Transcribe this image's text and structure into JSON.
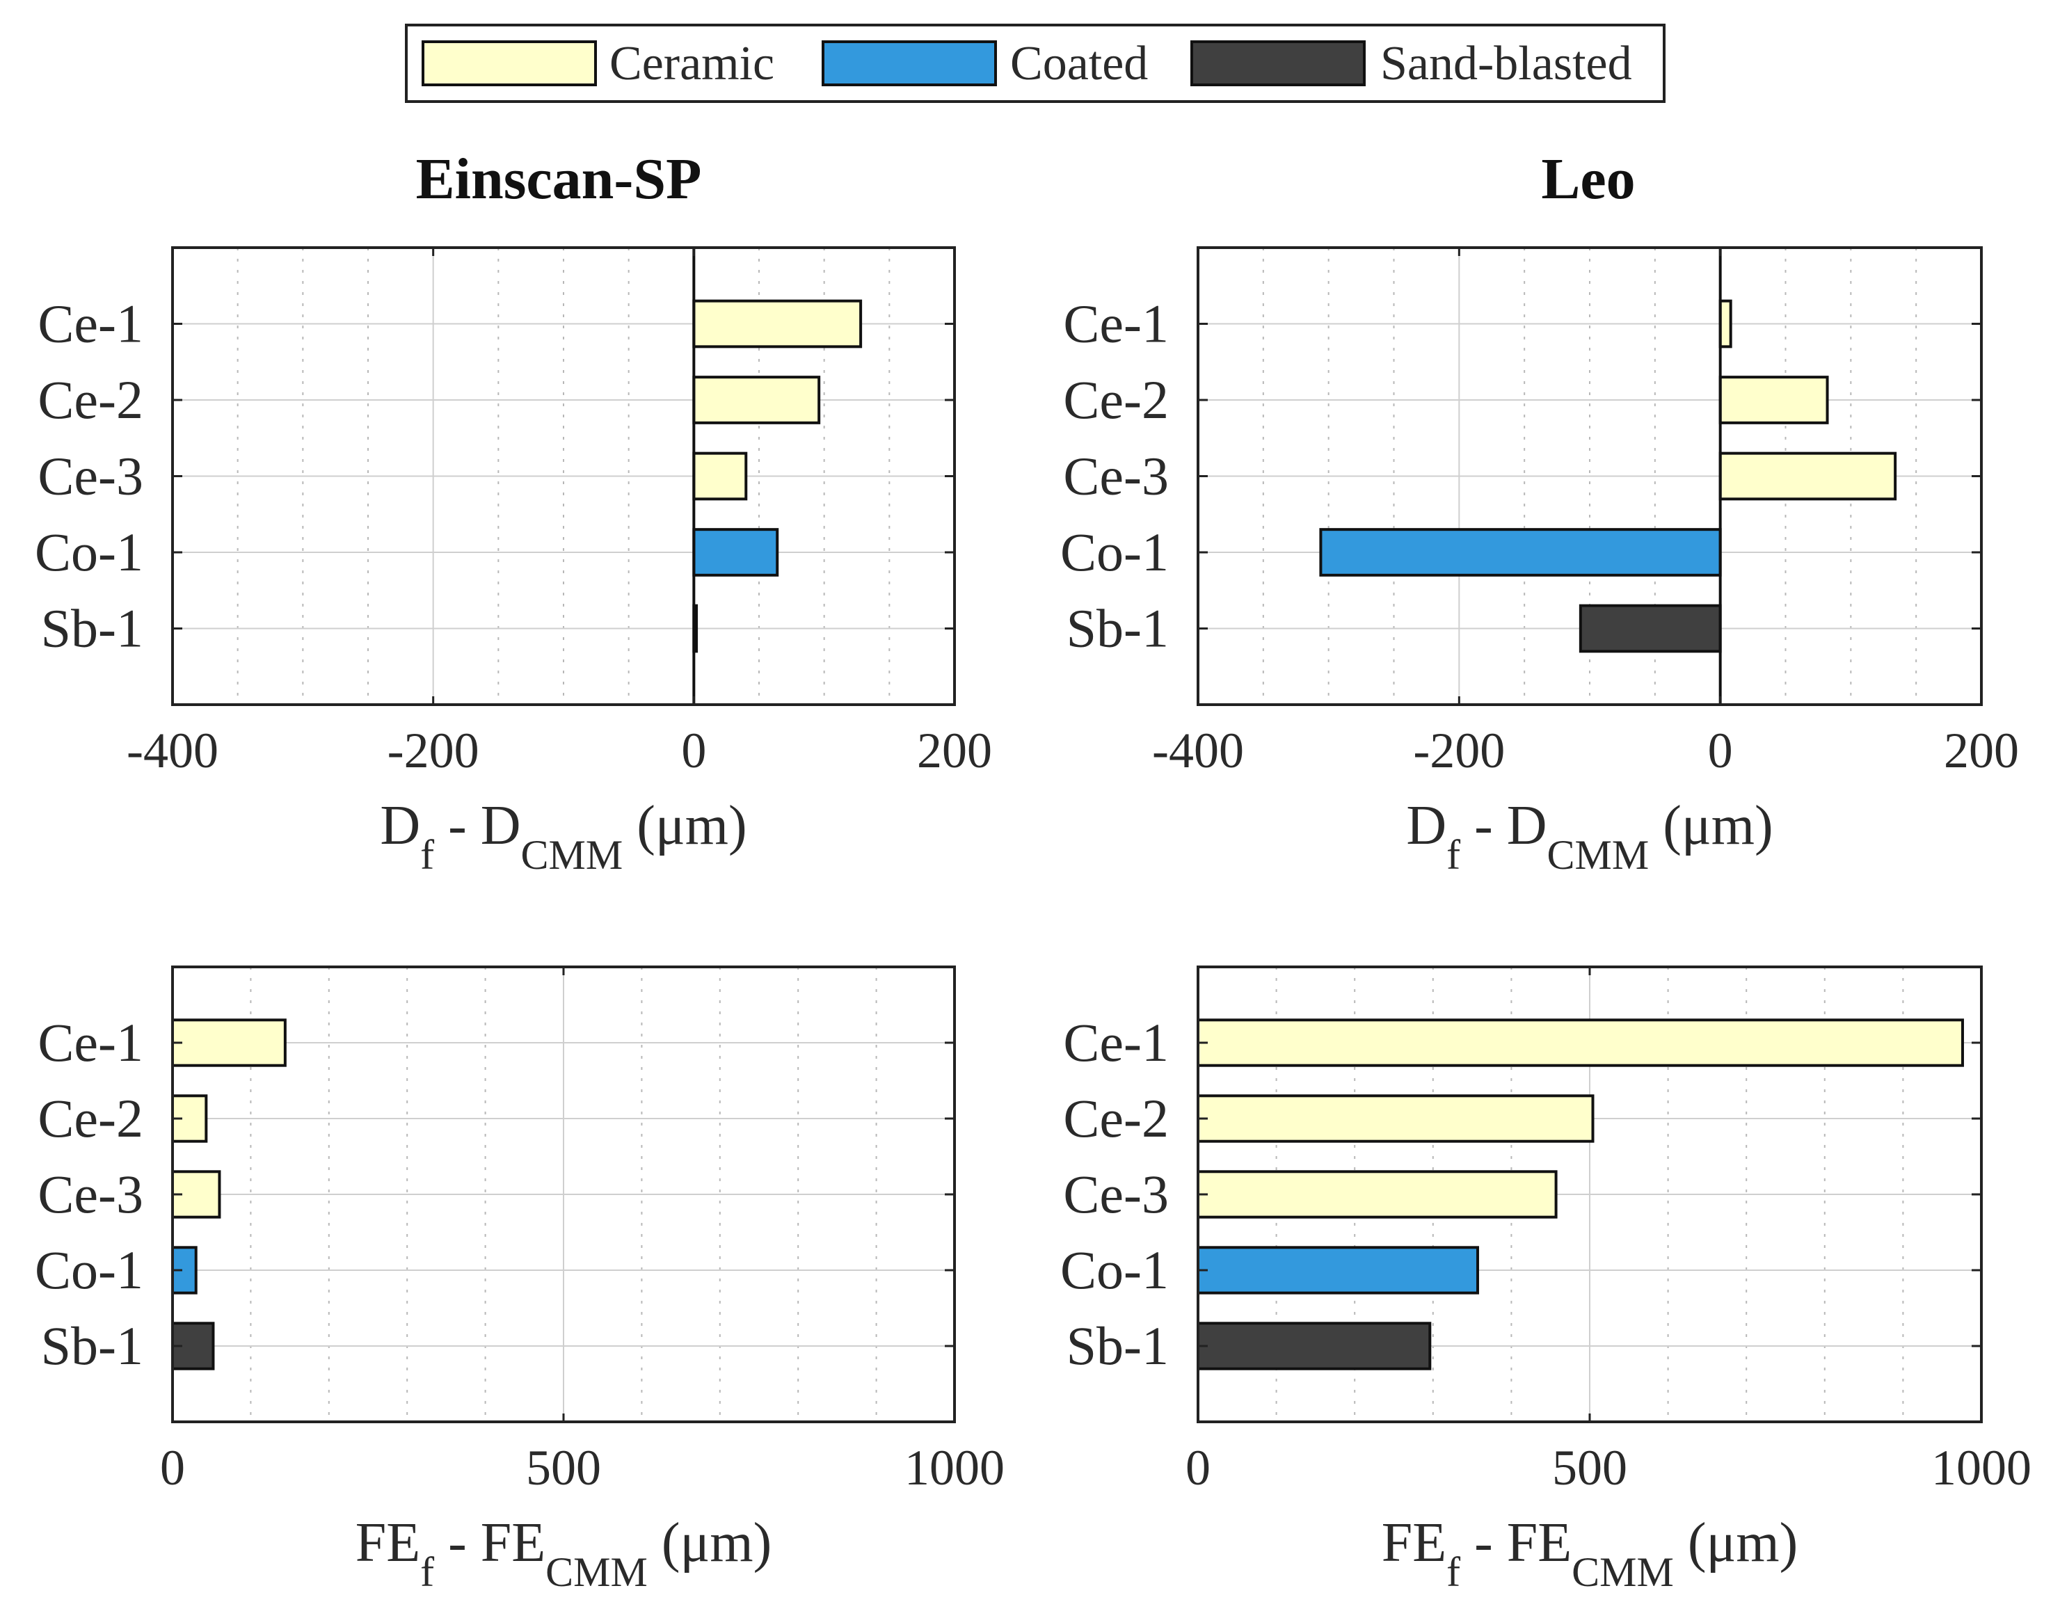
{
  "legend": {
    "items": [
      {
        "label": "Ceramic",
        "color": "#ffffcc"
      },
      {
        "label": "Coated",
        "color": "#3399dd"
      },
      {
        "label": "Sand-blasted",
        "color": "#404040"
      }
    ]
  },
  "chart_data": [
    {
      "type": "bar",
      "orientation": "horizontal",
      "title": "Einscan-SP",
      "xlabel": {
        "main": "D",
        "sub1": "f",
        "mid": " - D",
        "sub2": "CMM",
        "unit": " (μm)"
      },
      "categories": [
        "Ce-1",
        "Ce-2",
        "Ce-3",
        "Co-1",
        "Sb-1"
      ],
      "values": [
        128,
        96,
        40,
        64,
        2
      ],
      "bar_colors": [
        "#ffffcc",
        "#ffffcc",
        "#ffffcc",
        "#3399dd",
        "#404040"
      ],
      "xlim": [
        -400,
        200
      ],
      "xticks": [
        -400,
        -200,
        0,
        200
      ],
      "xtick_labels": [
        "-400",
        "-200",
        "0",
        "200"
      ],
      "minor_step": 50,
      "grid": true
    },
    {
      "type": "bar",
      "orientation": "horizontal",
      "title": "Leo",
      "xlabel": {
        "main": "D",
        "sub1": "f",
        "mid": " - D",
        "sub2": "CMM",
        "unit": " (μm)"
      },
      "categories": [
        "Ce-1",
        "Ce-2",
        "Ce-3",
        "Co-1",
        "Sb-1"
      ],
      "values": [
        8,
        82,
        134,
        -306,
        -107
      ],
      "bar_colors": [
        "#ffffcc",
        "#ffffcc",
        "#ffffcc",
        "#3399dd",
        "#404040"
      ],
      "xlim": [
        -400,
        200
      ],
      "xticks": [
        -400,
        -200,
        0,
        200
      ],
      "xtick_labels": [
        "-400",
        "-200",
        "0",
        "200"
      ],
      "minor_step": 50,
      "grid": true
    },
    {
      "type": "bar",
      "orientation": "horizontal",
      "title": "",
      "xlabel": {
        "main": "FE",
        "sub1": "f",
        "mid": " - FE",
        "sub2": "CMM",
        "unit": " (μm)"
      },
      "categories": [
        "Ce-1",
        "Ce-2",
        "Ce-3",
        "Co-1",
        "Sb-1"
      ],
      "values": [
        144,
        43,
        60,
        30,
        52
      ],
      "bar_colors": [
        "#ffffcc",
        "#ffffcc",
        "#ffffcc",
        "#3399dd",
        "#404040"
      ],
      "xlim": [
        0,
        1000
      ],
      "xticks": [
        0,
        500,
        1000
      ],
      "xtick_labels": [
        "0",
        "500",
        "1000"
      ],
      "minor_step": 100,
      "grid": true
    },
    {
      "type": "bar",
      "orientation": "horizontal",
      "title": "",
      "xlabel": {
        "main": "FE",
        "sub1": "f",
        "mid": " - FE",
        "sub2": "CMM",
        "unit": " (μm)"
      },
      "categories": [
        "Ce-1",
        "Ce-2",
        "Ce-3",
        "Co-1",
        "Sb-1"
      ],
      "values": [
        976,
        504,
        457,
        357,
        296
      ],
      "bar_colors": [
        "#ffffcc",
        "#ffffcc",
        "#ffffcc",
        "#3399dd",
        "#404040"
      ],
      "xlim": [
        0,
        1000
      ],
      "xticks": [
        0,
        500,
        1000
      ],
      "xtick_labels": [
        "0",
        "500",
        "1000"
      ],
      "minor_step": 100,
      "grid": true
    }
  ]
}
